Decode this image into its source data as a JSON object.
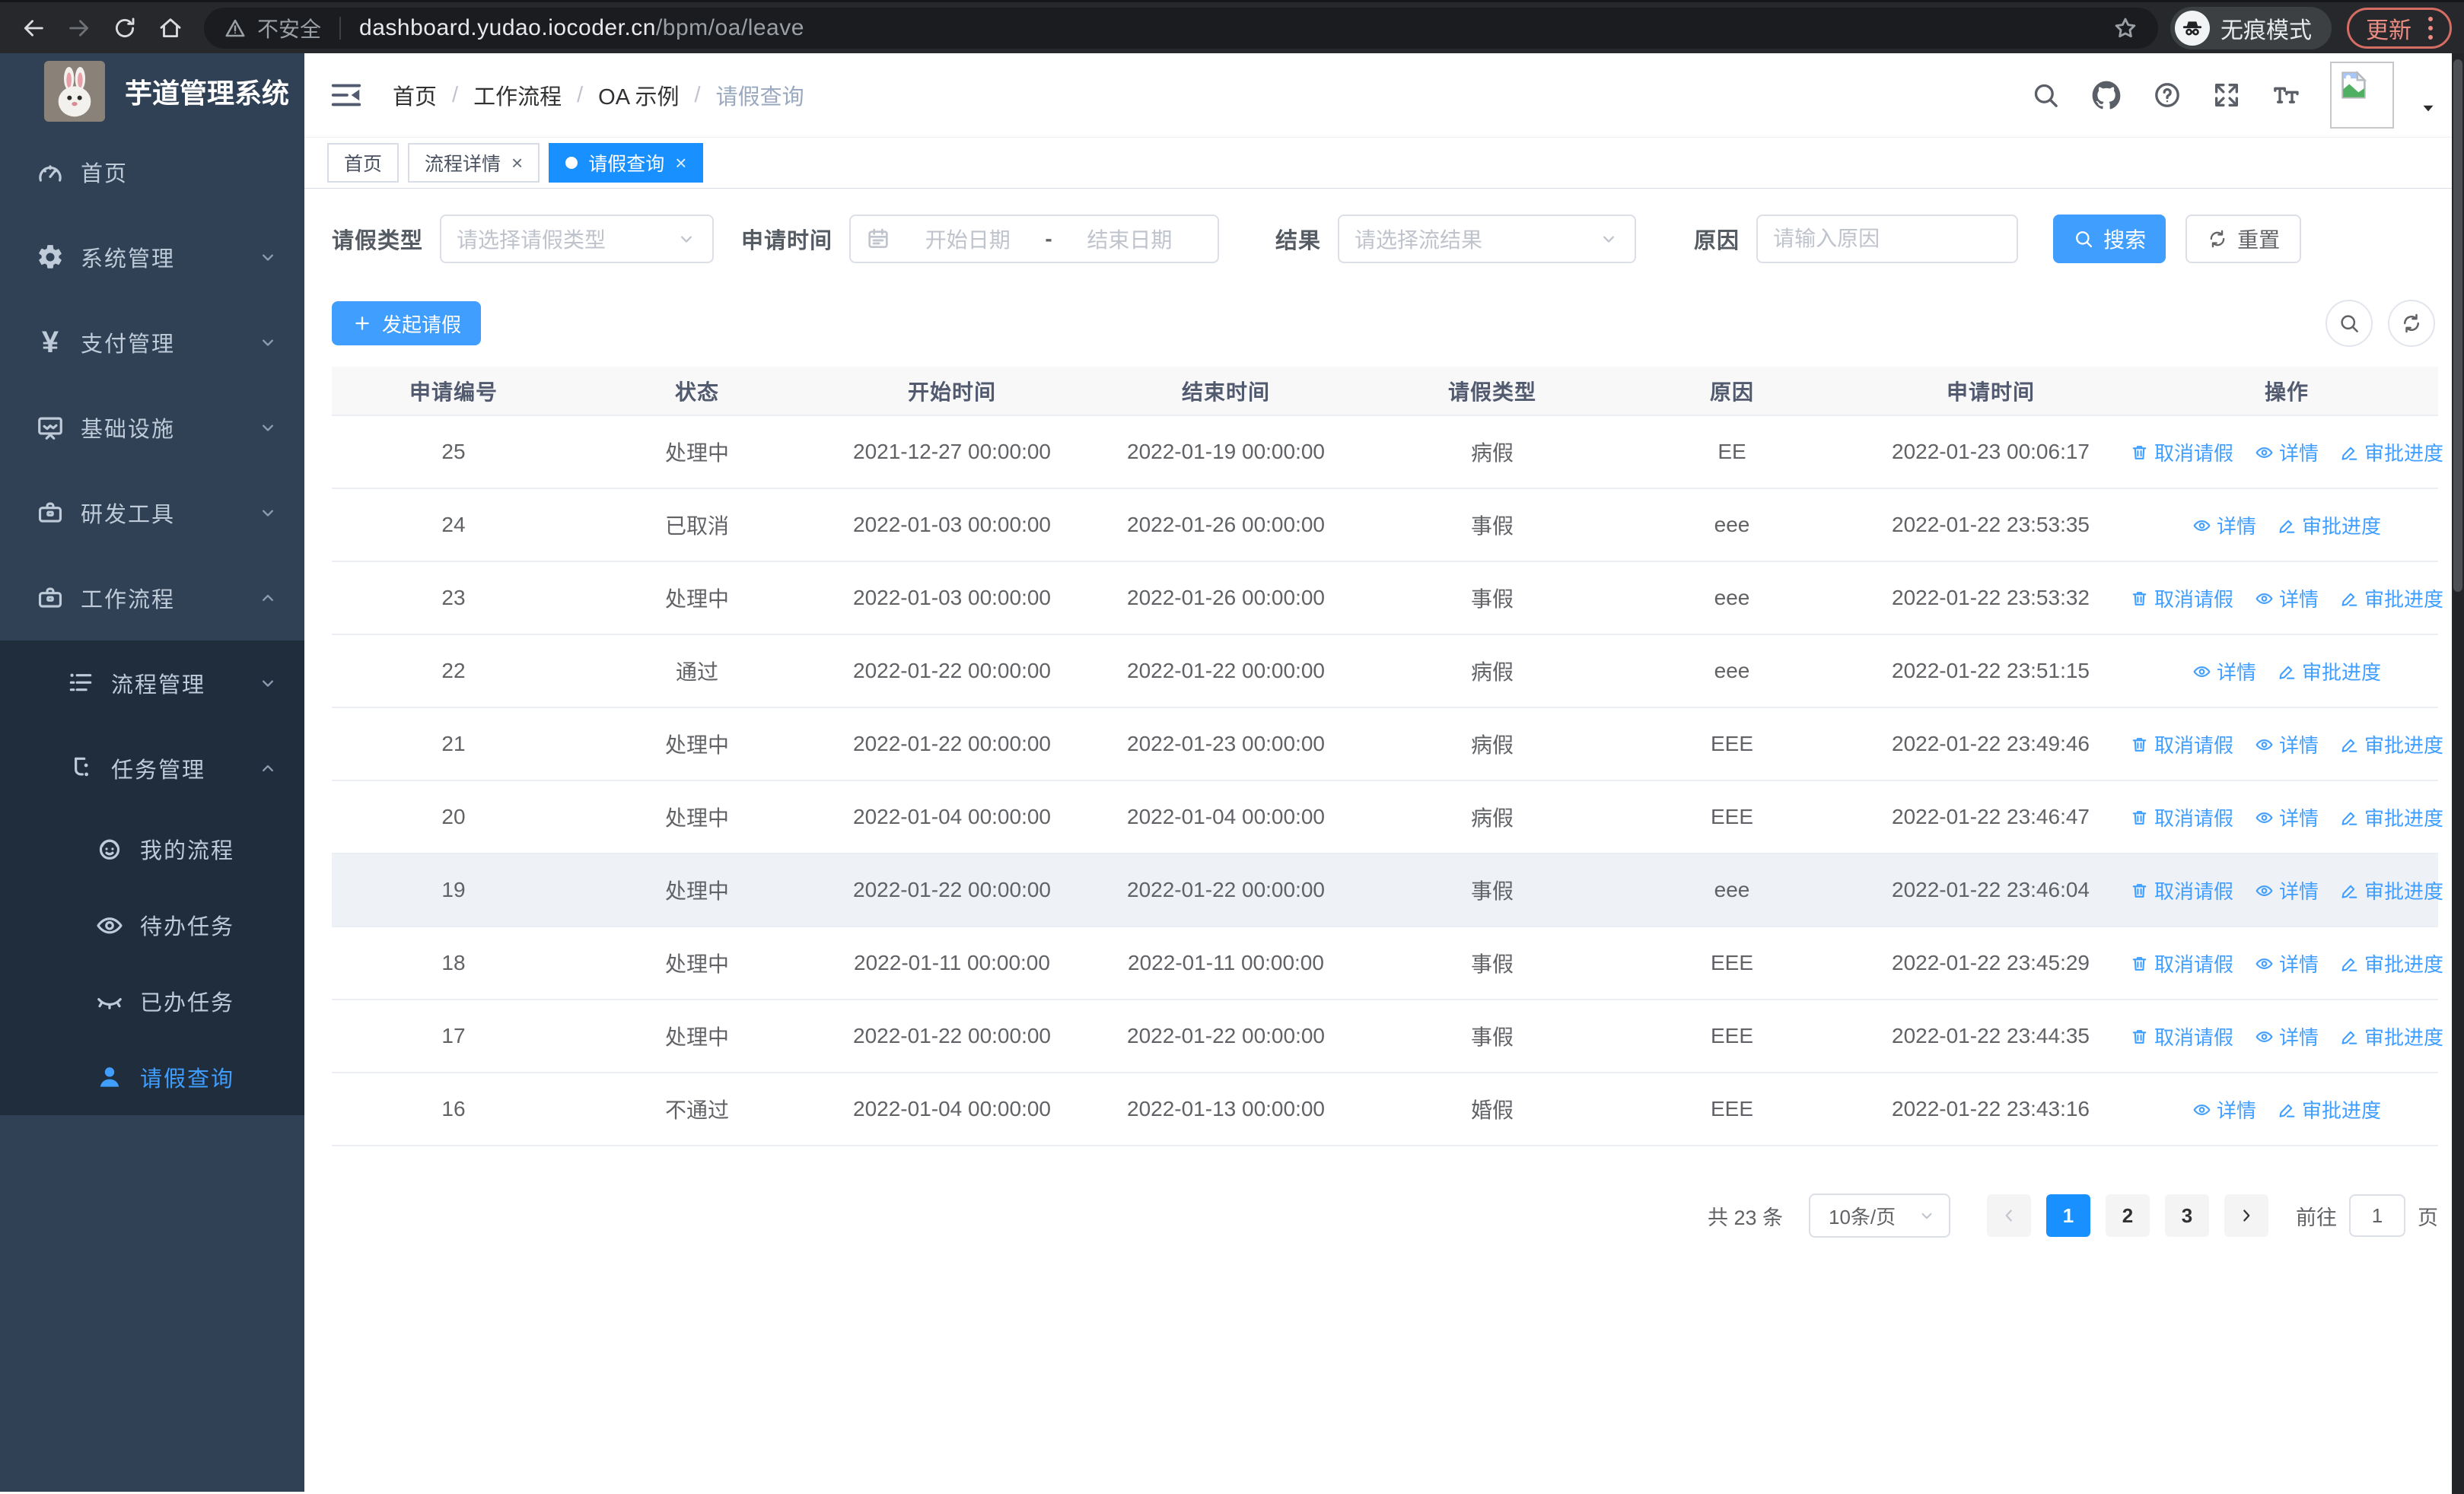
{
  "browser": {
    "security": "不安全",
    "host": "dashboard.yudao.iocoder.cn",
    "path": "/bpm/oa/leave",
    "incognito": "无痕模式",
    "update": "更新"
  },
  "sidebar": {
    "title": "芋道管理系统",
    "items": [
      {
        "key": "home",
        "icon": "gauge-icon",
        "label": "首页",
        "level": 0
      },
      {
        "key": "system",
        "icon": "gear-icon",
        "label": "系统管理",
        "level": 0,
        "chevron": "down"
      },
      {
        "key": "payment",
        "icon": "yen-icon",
        "label": "支付管理",
        "level": 0,
        "chevron": "down"
      },
      {
        "key": "infrastructure",
        "icon": "monitor-icon",
        "label": "基础设施",
        "level": 0,
        "chevron": "down"
      },
      {
        "key": "devtools",
        "icon": "toolbox-icon",
        "label": "研发工具",
        "level": 0,
        "chevron": "down"
      },
      {
        "key": "workflow",
        "icon": "toolbox-icon",
        "label": "工作流程",
        "level": 0,
        "chevron": "up"
      },
      {
        "key": "process-mgmt",
        "icon": "list-icon",
        "label": "流程管理",
        "level": 1,
        "chevron": "down",
        "sub": true
      },
      {
        "key": "task-mgmt",
        "icon": "branch-icon",
        "label": "任务管理",
        "level": 1,
        "chevron": "up",
        "sub": true
      },
      {
        "key": "my-process",
        "icon": "face-icon",
        "label": "我的流程",
        "level": 2,
        "sub": true
      },
      {
        "key": "todo-tasks",
        "icon": "eye-icon",
        "label": "待办任务",
        "level": 2,
        "sub": true
      },
      {
        "key": "done-tasks",
        "icon": "eye-closed-icon",
        "label": "已办任务",
        "level": 2,
        "sub": true
      },
      {
        "key": "leave-query",
        "icon": "user-icon",
        "label": "请假查询",
        "level": 2,
        "sub": true,
        "active": true
      }
    ]
  },
  "header": {
    "breadcrumb": [
      "首页",
      "工作流程",
      "OA 示例",
      "请假查询"
    ],
    "separator": "/",
    "icons": [
      "search-icon",
      "github-icon",
      "question-icon",
      "fullscreen-icon",
      "font-size-icon"
    ]
  },
  "tabs": [
    {
      "label": "首页"
    },
    {
      "label": "流程详情",
      "closable": true
    },
    {
      "label": "请假查询",
      "closable": true,
      "active": true
    }
  ],
  "filters": {
    "type_label": "请假类型",
    "type_placeholder": "请选择请假类型",
    "time_label": "申请时间",
    "start_placeholder": "开始日期",
    "range_separator": "-",
    "end_placeholder": "结束日期",
    "result_label": "结果",
    "result_placeholder": "请选择流结果",
    "reason_label": "原因",
    "reason_placeholder": "请输入原因",
    "search_label": "搜索",
    "reset_label": "重置"
  },
  "toolbar": {
    "create_label": "发起请假"
  },
  "table": {
    "headers": [
      "申请编号",
      "状态",
      "开始时间",
      "结束时间",
      "请假类型",
      "原因",
      "申请时间",
      "操作"
    ],
    "action_labels": {
      "cancel": "取消请假",
      "detail": "详情",
      "progress": "审批进度"
    },
    "rows": [
      {
        "id": "25",
        "status": "处理中",
        "start": "2021-12-27 00:00:00",
        "end": "2022-01-19 00:00:00",
        "type": "病假",
        "reason": "EE",
        "applied": "2022-01-23 00:06:17",
        "actions": [
          "cancel",
          "detail",
          "progress"
        ]
      },
      {
        "id": "24",
        "status": "已取消",
        "start": "2022-01-03 00:00:00",
        "end": "2022-01-26 00:00:00",
        "type": "事假",
        "reason": "eee",
        "applied": "2022-01-22 23:53:35",
        "actions": [
          "detail",
          "progress"
        ]
      },
      {
        "id": "23",
        "status": "处理中",
        "start": "2022-01-03 00:00:00",
        "end": "2022-01-26 00:00:00",
        "type": "事假",
        "reason": "eee",
        "applied": "2022-01-22 23:53:32",
        "actions": [
          "cancel",
          "detail",
          "progress"
        ]
      },
      {
        "id": "22",
        "status": "通过",
        "start": "2022-01-22 00:00:00",
        "end": "2022-01-22 00:00:00",
        "type": "病假",
        "reason": "eee",
        "applied": "2022-01-22 23:51:15",
        "actions": [
          "detail",
          "progress"
        ]
      },
      {
        "id": "21",
        "status": "处理中",
        "start": "2022-01-22 00:00:00",
        "end": "2022-01-23 00:00:00",
        "type": "病假",
        "reason": "EEE",
        "applied": "2022-01-22 23:49:46",
        "actions": [
          "cancel",
          "detail",
          "progress"
        ]
      },
      {
        "id": "20",
        "status": "处理中",
        "start": "2022-01-04 00:00:00",
        "end": "2022-01-04 00:00:00",
        "type": "病假",
        "reason": "EEE",
        "applied": "2022-01-22 23:46:47",
        "actions": [
          "cancel",
          "detail",
          "progress"
        ]
      },
      {
        "id": "19",
        "status": "处理中",
        "start": "2022-01-22 00:00:00",
        "end": "2022-01-22 00:00:00",
        "type": "事假",
        "reason": "eee",
        "applied": "2022-01-22 23:46:04",
        "actions": [
          "cancel",
          "detail",
          "progress"
        ],
        "highlight": true
      },
      {
        "id": "18",
        "status": "处理中",
        "start": "2022-01-11 00:00:00",
        "end": "2022-01-11 00:00:00",
        "type": "事假",
        "reason": "EEE",
        "applied": "2022-01-22 23:45:29",
        "actions": [
          "cancel",
          "detail",
          "progress"
        ]
      },
      {
        "id": "17",
        "status": "处理中",
        "start": "2022-01-22 00:00:00",
        "end": "2022-01-22 00:00:00",
        "type": "事假",
        "reason": "EEE",
        "applied": "2022-01-22 23:44:35",
        "actions": [
          "cancel",
          "detail",
          "progress"
        ]
      },
      {
        "id": "16",
        "status": "不通过",
        "start": "2022-01-04 00:00:00",
        "end": "2022-01-13 00:00:00",
        "type": "婚假",
        "reason": "EEE",
        "applied": "2022-01-22 23:43:16",
        "actions": [
          "detail",
          "progress"
        ]
      }
    ]
  },
  "pagination": {
    "total": "共 23 条",
    "page_size": "10条/页",
    "pages": [
      "1",
      "2",
      "3"
    ],
    "active_page": "1",
    "goto": "前往",
    "goto_value": "1",
    "unit": "页"
  },
  "colors": {
    "primary": "#409eff",
    "active_tab": "#1890ff",
    "sidebar_bg": "#304156",
    "submenu_bg": "#1f2d3d"
  }
}
